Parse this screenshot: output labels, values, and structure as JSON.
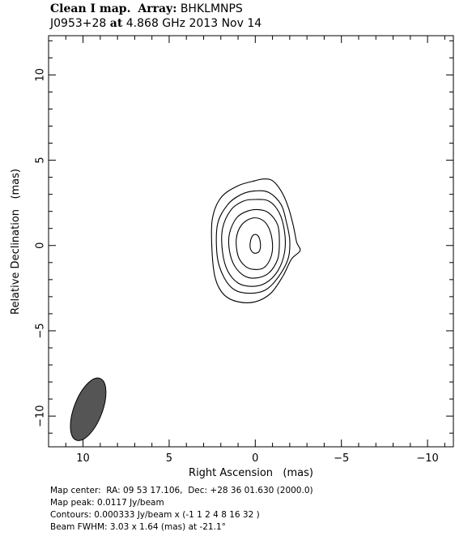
{
  "header": {
    "title_label": "Clean I map.",
    "array_label": "Array:",
    "array_value": "BHKLMNPS",
    "source": "J0953+28",
    "at_label": "at",
    "frequency": "4.868 GHz",
    "date": "2013 Nov 14"
  },
  "footer": {
    "map_center": "Map center:  RA: 09 53 17.106,  Dec: +28 36 01.630 (2000.0)",
    "map_peak": "Map peak: 0.0117 Jy/beam",
    "contours": "Contours: 0.000333 Jy/beam x (-1 1 2 4 8 16 32 )",
    "beam": "Beam FWHM: 3.03 x 1.64 (mas) at -21.1°"
  },
  "chart_data": {
    "type": "contour",
    "xlabel": "Right Ascension   (mas)",
    "ylabel": "Relative Declination   (mas)",
    "xlim": [
      12,
      -11.5
    ],
    "ylim": [
      -11.8,
      12.3
    ],
    "x_ticks": [
      10,
      5,
      0,
      -5,
      -10
    ],
    "x_tick_labels": [
      "10",
      "5",
      "0",
      "−5",
      "−10"
    ],
    "y_ticks": [
      10,
      5,
      0,
      -5,
      -10
    ],
    "y_tick_labels": [
      "10",
      "5",
      "0",
      "−5",
      "−10"
    ],
    "grid": false,
    "contour_levels": [
      -1,
      1,
      2,
      4,
      8,
      16,
      32
    ],
    "contours": [
      {
        "level": 1,
        "points": [
          [
            2.5,
            1.5
          ],
          [
            2.0,
            2.8
          ],
          [
            1.0,
            3.5
          ],
          [
            0.0,
            3.8
          ],
          [
            -0.5,
            3.9
          ],
          [
            -1.0,
            3.8
          ],
          [
            -1.5,
            3.2
          ],
          [
            -1.9,
            2.3
          ],
          [
            -2.2,
            1.2
          ],
          [
            -2.4,
            0.2
          ],
          [
            -2.6,
            -0.3
          ],
          [
            -2.1,
            -0.8
          ],
          [
            -1.6,
            -1.8
          ],
          [
            -0.9,
            -2.8
          ],
          [
            0.0,
            -3.3
          ],
          [
            1.0,
            -3.3
          ],
          [
            1.8,
            -2.9
          ],
          [
            2.3,
            -2.0
          ],
          [
            2.5,
            -0.5
          ]
        ]
      },
      {
        "level": 2,
        "points": [
          [
            2.2,
            1.2
          ],
          [
            1.6,
            2.4
          ],
          [
            0.8,
            3.0
          ],
          [
            0.0,
            3.2
          ],
          [
            -0.8,
            3.1
          ],
          [
            -1.5,
            2.4
          ],
          [
            -1.8,
            1.4
          ],
          [
            -2.0,
            0.3
          ],
          [
            -1.9,
            -0.8
          ],
          [
            -1.3,
            -1.9
          ],
          [
            -0.6,
            -2.6
          ],
          [
            0.3,
            -2.8
          ],
          [
            1.2,
            -2.6
          ],
          [
            1.8,
            -1.9
          ],
          [
            2.2,
            -0.7
          ]
        ]
      },
      {
        "level": 4,
        "points": [
          [
            1.9,
            1.0
          ],
          [
            1.4,
            2.1
          ],
          [
            0.7,
            2.6
          ],
          [
            0.0,
            2.7
          ],
          [
            -0.8,
            2.6
          ],
          [
            -1.4,
            1.9
          ],
          [
            -1.7,
            0.8
          ],
          [
            -1.7,
            -0.4
          ],
          [
            -1.3,
            -1.5
          ],
          [
            -0.6,
            -2.2
          ],
          [
            0.2,
            -2.4
          ],
          [
            1.0,
            -2.2
          ],
          [
            1.6,
            -1.5
          ],
          [
            1.9,
            -0.4
          ]
        ]
      },
      {
        "level": 8,
        "points": [
          [
            1.5,
            0.7
          ],
          [
            1.1,
            1.6
          ],
          [
            0.5,
            2.0
          ],
          [
            -0.2,
            2.1
          ],
          [
            -0.8,
            1.9
          ],
          [
            -1.3,
            1.2
          ],
          [
            -1.4,
            0.2
          ],
          [
            -1.3,
            -0.8
          ],
          [
            -0.8,
            -1.6
          ],
          [
            -0.1,
            -1.9
          ],
          [
            0.6,
            -1.8
          ],
          [
            1.2,
            -1.2
          ],
          [
            1.5,
            -0.3
          ]
        ]
      },
      {
        "level": 16,
        "points": [
          [
            1.1,
            0.4
          ],
          [
            0.8,
            1.2
          ],
          [
            0.2,
            1.6
          ],
          [
            -0.4,
            1.5
          ],
          [
            -0.8,
            1.0
          ],
          [
            -1.0,
            0.1
          ],
          [
            -0.9,
            -0.7
          ],
          [
            -0.5,
            -1.3
          ],
          [
            0.1,
            -1.4
          ],
          [
            0.6,
            -1.2
          ],
          [
            1.0,
            -0.6
          ]
        ]
      },
      {
        "level": 32,
        "points": [
          [
            0.3,
            0.1
          ],
          [
            0.2,
            0.5
          ],
          [
            0.0,
            0.65
          ],
          [
            -0.2,
            0.5
          ],
          [
            -0.3,
            0.1
          ],
          [
            -0.25,
            -0.3
          ],
          [
            -0.05,
            -0.45
          ],
          [
            0.15,
            -0.4
          ],
          [
            0.28,
            -0.2
          ]
        ]
      }
    ],
    "beam": {
      "center": [
        9.7,
        -9.6
      ],
      "major_fwhm": 3.03,
      "minor_fwhm": 1.64,
      "pa_deg": -21.1,
      "fill": "#555555"
    }
  }
}
